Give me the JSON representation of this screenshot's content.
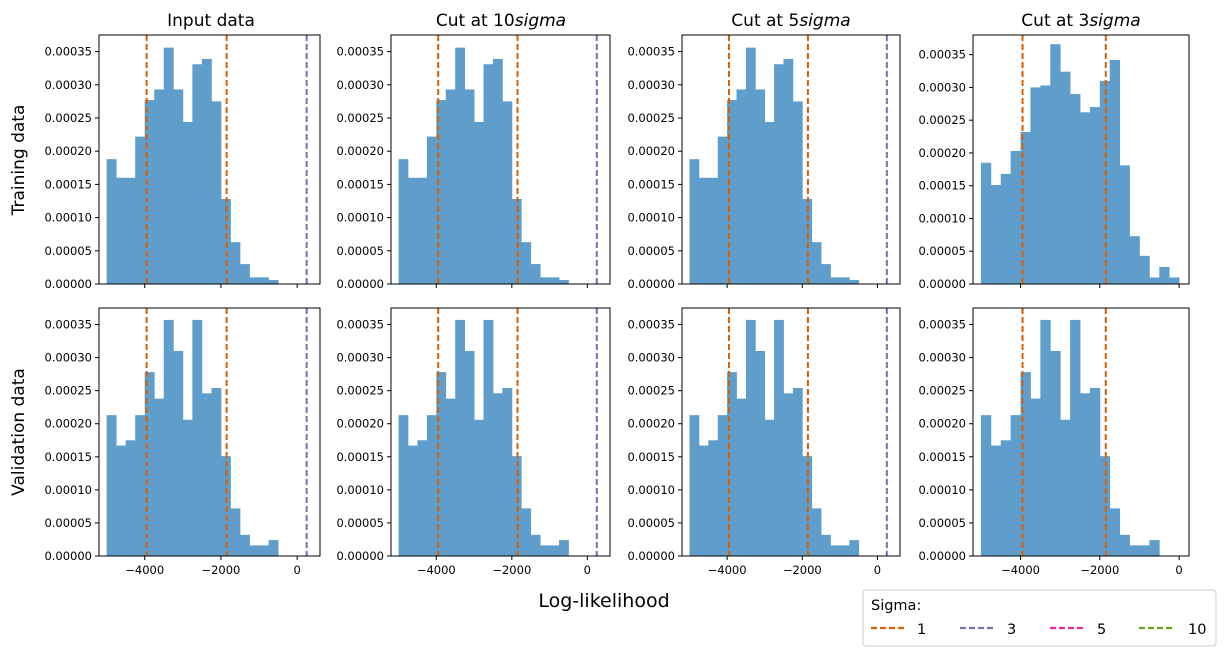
{
  "chart_data": {
    "type": "bar",
    "subtype": "histogram-grid",
    "xlabel": "Log-likelihood",
    "grid": false,
    "columns": [
      {
        "title_prefix": "Input data",
        "title_italic": ""
      },
      {
        "title_prefix": "Cut at 10",
        "title_italic": "sigma"
      },
      {
        "title_prefix": "Cut at 5",
        "title_italic": "sigma"
      },
      {
        "title_prefix": "Cut at 3",
        "title_italic": "sigma"
      }
    ],
    "rows": [
      {
        "label": "Training data"
      },
      {
        "label": "Validation data"
      }
    ],
    "y_ticks": [
      "0.00000",
      "0.00005",
      "0.00010",
      "0.00015",
      "0.00020",
      "0.00025",
      "0.00030",
      "0.00035"
    ],
    "x_ticks": [
      "-4000",
      "-2000",
      "0"
    ],
    "bar_color": "#5f9ecb",
    "legend": {
      "title": "Sigma:",
      "placement": "lower-right",
      "entries": [
        {
          "label": "1",
          "color": "#d95f02"
        },
        {
          "label": "3",
          "color": "#7570b3"
        },
        {
          "label": "5",
          "color": "#e7298a"
        },
        {
          "label": "10",
          "color": "#66a61e"
        }
      ]
    },
    "panels": [
      {
        "row": 0,
        "col": 0,
        "xlim": [
          -5200,
          600
        ],
        "ylim": [
          0,
          0.000375
        ],
        "bins_start": -5000,
        "bin_width": 250,
        "counts": [
          0.000188,
          0.00016,
          0.00016,
          0.000222,
          0.000277,
          0.000293,
          0.000356,
          0.000293,
          0.000244,
          0.000331,
          0.000339,
          0.000275,
          0.000128,
          6.3e-05,
          3e-05,
          1e-05,
          1e-05,
          6e-06
        ],
        "vlines": [
          {
            "x": -3950,
            "color": "#d95f02"
          },
          {
            "x": -1850,
            "color": "#d95f02"
          },
          {
            "x": 250,
            "color": "#7570b3"
          }
        ]
      },
      {
        "row": 0,
        "col": 1,
        "xlim": [
          -5200,
          600
        ],
        "ylim": [
          0,
          0.000375
        ],
        "bins_start": -5000,
        "bin_width": 250,
        "counts": [
          0.000188,
          0.00016,
          0.00016,
          0.000222,
          0.000277,
          0.000293,
          0.000356,
          0.000293,
          0.000244,
          0.000331,
          0.000339,
          0.000275,
          0.000128,
          6.3e-05,
          3e-05,
          1e-05,
          1e-05,
          6e-06
        ],
        "vlines": [
          {
            "x": -3950,
            "color": "#d95f02"
          },
          {
            "x": -1850,
            "color": "#d95f02"
          },
          {
            "x": 250,
            "color": "#7570b3"
          }
        ]
      },
      {
        "row": 0,
        "col": 2,
        "xlim": [
          -5200,
          600
        ],
        "ylim": [
          0,
          0.000375
        ],
        "bins_start": -5000,
        "bin_width": 250,
        "counts": [
          0.000188,
          0.00016,
          0.00016,
          0.000222,
          0.000277,
          0.000293,
          0.000356,
          0.000293,
          0.000244,
          0.000331,
          0.000339,
          0.000275,
          0.000128,
          6.3e-05,
          3e-05,
          1e-05,
          1e-05,
          6e-06
        ],
        "vlines": [
          {
            "x": -3950,
            "color": "#d95f02"
          },
          {
            "x": -1850,
            "color": "#d95f02"
          },
          {
            "x": 250,
            "color": "#7570b3"
          }
        ]
      },
      {
        "row": 0,
        "col": 3,
        "xlim": [
          -5200,
          250
        ],
        "ylim": [
          0,
          0.00038
        ],
        "bins_start": -5000,
        "bin_width": 250,
        "counts": [
          0.000185,
          0.000151,
          0.000168,
          0.000203,
          0.000232,
          0.0003,
          0.000303,
          0.000366,
          0.000324,
          0.00029,
          0.000262,
          0.00027,
          0.00031,
          0.000342,
          0.000181,
          7.3e-05,
          4.3e-05,
          1e-05,
          2.6e-05,
          1e-05
        ],
        "vlines": [
          {
            "x": -3950,
            "color": "#d95f02"
          },
          {
            "x": -1850,
            "color": "#d95f02"
          }
        ]
      },
      {
        "row": 1,
        "col": 0,
        "xlim": [
          -5200,
          600
        ],
        "ylim": [
          0,
          0.000375
        ],
        "bins_start": -5000,
        "bin_width": 250,
        "counts": [
          0.000213,
          0.000167,
          0.000175,
          0.000213,
          0.000278,
          0.000238,
          0.000357,
          0.00031,
          0.000206,
          0.000357,
          0.000246,
          0.000254,
          0.000151,
          7.2e-05,
          3.2e-05,
          1.6e-05,
          1.6e-05,
          2.4e-05
        ],
        "vlines": [
          {
            "x": -3950,
            "color": "#d95f02"
          },
          {
            "x": -1850,
            "color": "#d95f02"
          },
          {
            "x": 250,
            "color": "#7570b3"
          }
        ]
      },
      {
        "row": 1,
        "col": 1,
        "xlim": [
          -5200,
          600
        ],
        "ylim": [
          0,
          0.000375
        ],
        "bins_start": -5000,
        "bin_width": 250,
        "counts": [
          0.000213,
          0.000167,
          0.000175,
          0.000213,
          0.000278,
          0.000238,
          0.000357,
          0.00031,
          0.000206,
          0.000357,
          0.000246,
          0.000254,
          0.000151,
          7.2e-05,
          3.2e-05,
          1.6e-05,
          1.6e-05,
          2.4e-05
        ],
        "vlines": [
          {
            "x": -3950,
            "color": "#d95f02"
          },
          {
            "x": -1850,
            "color": "#d95f02"
          },
          {
            "x": 250,
            "color": "#7570b3"
          }
        ]
      },
      {
        "row": 1,
        "col": 2,
        "xlim": [
          -5200,
          600
        ],
        "ylim": [
          0,
          0.000375
        ],
        "bins_start": -5000,
        "bin_width": 250,
        "counts": [
          0.000213,
          0.000167,
          0.000175,
          0.000213,
          0.000278,
          0.000238,
          0.000357,
          0.00031,
          0.000206,
          0.000357,
          0.000246,
          0.000254,
          0.000151,
          7.2e-05,
          3.2e-05,
          1.6e-05,
          1.6e-05,
          2.4e-05
        ],
        "vlines": [
          {
            "x": -3950,
            "color": "#d95f02"
          },
          {
            "x": -1850,
            "color": "#d95f02"
          },
          {
            "x": 250,
            "color": "#7570b3"
          }
        ]
      },
      {
        "row": 1,
        "col": 3,
        "xlim": [
          -5200,
          250
        ],
        "ylim": [
          0,
          0.000375
        ],
        "bins_start": -5000,
        "bin_width": 250,
        "counts": [
          0.000213,
          0.000167,
          0.000175,
          0.000213,
          0.000278,
          0.000238,
          0.000357,
          0.00031,
          0.000206,
          0.000357,
          0.000246,
          0.000254,
          0.000151,
          7.2e-05,
          3.2e-05,
          1.6e-05,
          1.6e-05,
          2.4e-05
        ],
        "vlines": [
          {
            "x": -3950,
            "color": "#d95f02"
          },
          {
            "x": -1850,
            "color": "#d95f02"
          }
        ]
      }
    ]
  }
}
